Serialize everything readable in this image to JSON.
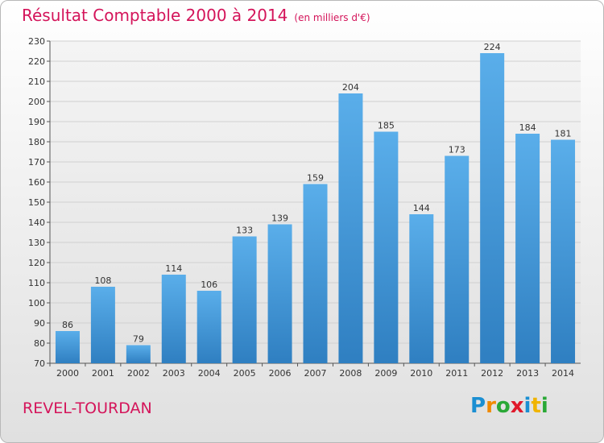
{
  "header": {
    "title": "Résultat Comptable 2000 à 2014",
    "subtitle": "(en milliers d'€)"
  },
  "footer": {
    "city": "REVEL-TOURDAN",
    "logo_text": "Proxiti",
    "logo_letters": [
      {
        "ch": "P",
        "color": "#1b8fd2"
      },
      {
        "ch": "r",
        "color": "#f08a00"
      },
      {
        "ch": "o",
        "color": "#2aa836"
      },
      {
        "ch": "x",
        "color": "#e0192b"
      },
      {
        "ch": "i",
        "color": "#1b8fd2"
      },
      {
        "ch": "t",
        "color": "#f0b400"
      },
      {
        "ch": "i",
        "color": "#2aa836"
      }
    ]
  },
  "colors": {
    "title": "#d4145a",
    "bar_top": "#5aaeea",
    "bar_bottom": "#2f7fc1",
    "grid": "#d0d0d0"
  },
  "chart_data": {
    "type": "bar",
    "title": "Résultat Comptable 2000 à 2014",
    "subtitle": "(en milliers d'€)",
    "categories": [
      "2000",
      "2001",
      "2002",
      "2003",
      "2004",
      "2005",
      "2006",
      "2007",
      "2008",
      "2009",
      "2010",
      "2011",
      "2012",
      "2013",
      "2014"
    ],
    "values": [
      86,
      108,
      79,
      114,
      106,
      133,
      139,
      159,
      204,
      185,
      144,
      173,
      224,
      184,
      181
    ],
    "ylim": [
      70,
      230
    ],
    "ytick_step": 10,
    "grid": true,
    "xlabel": "",
    "ylabel": ""
  }
}
